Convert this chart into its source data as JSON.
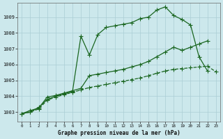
{
  "title": "Graphe pression niveau de la mer (hPa)",
  "bg_color": "#cce8ec",
  "grid_color": "#aacdd4",
  "line_color": "#1a6620",
  "xlim": [
    -0.5,
    23.5
  ],
  "ylim": [
    1002.4,
    1009.9
  ],
  "yticks": [
    1003,
    1004,
    1005,
    1006,
    1007,
    1008,
    1009
  ],
  "xticks": [
    0,
    1,
    2,
    3,
    4,
    5,
    6,
    7,
    8,
    9,
    10,
    11,
    12,
    13,
    14,
    15,
    16,
    17,
    18,
    19,
    20,
    21,
    22,
    23
  ],
  "line1_x": [
    0,
    1,
    2,
    3,
    4,
    5,
    6,
    7,
    8,
    9,
    10,
    11,
    12,
    13,
    14,
    15,
    16,
    17,
    18,
    19,
    20,
    21,
    22
  ],
  "line1_y": [
    1002.9,
    1003.0,
    1003.3,
    1003.8,
    1004.0,
    1004.15,
    1004.3,
    1007.8,
    1006.6,
    1007.9,
    1008.35,
    1008.45,
    1008.55,
    1008.65,
    1008.9,
    1009.0,
    1009.45,
    1009.65,
    1009.1,
    1008.85,
    1008.5,
    1006.5,
    1005.6
  ],
  "line2_x": [
    0,
    1,
    2,
    3,
    4,
    5,
    6,
    7,
    8,
    9,
    10,
    11,
    12,
    13,
    14,
    15,
    16,
    17,
    18,
    19,
    20,
    21,
    22,
    23
  ],
  "line2_y": [
    1002.9,
    1003.1,
    1003.25,
    1003.95,
    1004.05,
    1004.2,
    1004.35,
    1004.5,
    1005.3,
    1005.4,
    1005.5,
    1005.6,
    1005.7,
    1005.85,
    1006.0,
    1006.2,
    1006.5,
    1006.8,
    1007.1,
    1006.9,
    1007.1,
    1007.3,
    1007.5,
    null
  ],
  "line3_x": [
    0,
    1,
    2,
    3,
    4,
    5,
    6,
    7,
    8,
    9,
    10,
    11,
    12,
    13,
    14,
    15,
    16,
    17,
    18,
    19,
    20,
    21,
    22,
    23
  ],
  "line3_y": [
    1002.9,
    1003.0,
    1003.2,
    1003.75,
    1003.95,
    1004.1,
    1004.25,
    1004.4,
    1004.55,
    1004.65,
    1004.75,
    1004.85,
    1004.95,
    1005.05,
    1005.15,
    1005.3,
    1005.45,
    1005.6,
    1005.7,
    1005.75,
    1005.8,
    1005.85,
    1005.9,
    1005.55
  ],
  "line1_style": "solid",
  "line2_style": "solid",
  "line3_style": "dashed"
}
